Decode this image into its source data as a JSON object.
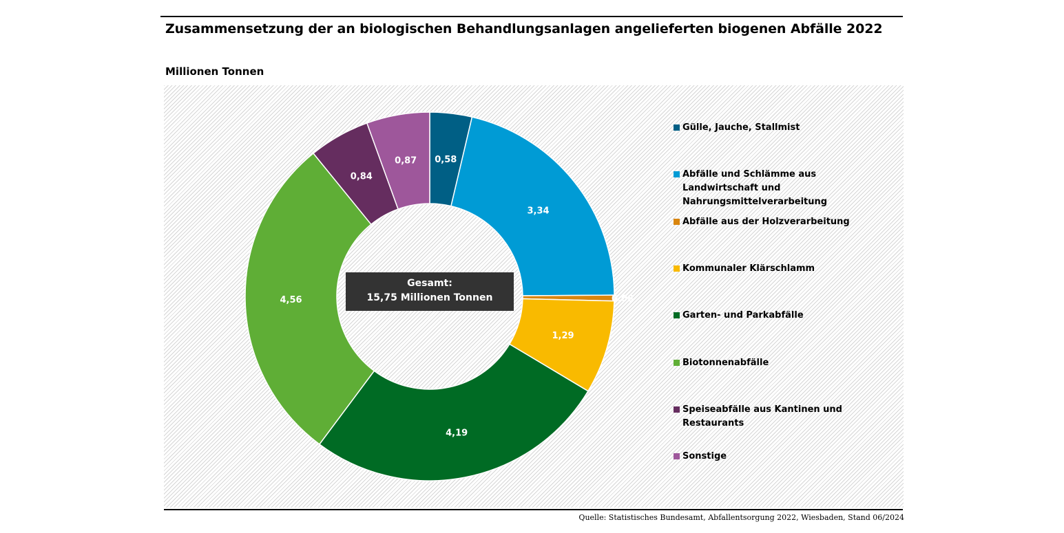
{
  "title": "Zusammensetzung der an biologischen Behandlungsanlagen angelieferten biogenen Abfälle 2022",
  "unit_label": "Millionen Tonnen",
  "source": "Quelle: Statistisches Bundesamt, Abfallentsorgung 2022, Wiesbaden, Stand 06/2024",
  "center": {
    "line1": "Gesamt:",
    "line2": "15,75 Millionen Tonnen"
  },
  "chart_data": {
    "type": "pie",
    "variant": "donut",
    "total": 15.75,
    "slices": [
      {
        "label": "Gülle, Jauche, Stallmist",
        "value": 0.58,
        "display": "0,58",
        "color": "#005f85"
      },
      {
        "label": "Abfälle und Schlämme aus Landwirtschaft und Nahrungsmittelverarbeitung",
        "value": 3.34,
        "display": "3,34",
        "color": "#009bd5"
      },
      {
        "label": "Abfälle aus der Holzverarbeitung",
        "value": 0.08,
        "display": "0,08",
        "color": "#d9850e"
      },
      {
        "label": "Kommunaler Klärschlamm",
        "value": 1.29,
        "display": "1,29",
        "color": "#f9ba00"
      },
      {
        "label": "Garten- und Parkabfälle",
        "value": 4.19,
        "display": "4,19",
        "color": "#006b24"
      },
      {
        "label": "Biotonnenabfälle",
        "value": 4.56,
        "display": "4,56",
        "color": "#5fae36"
      },
      {
        "label": "Speiseabfälle aus Kantinen und Restaurants",
        "value": 0.84,
        "display": "0,84",
        "color": "#652d5f"
      },
      {
        "label": "Sonstige",
        "value": 0.87,
        "display": "0,87",
        "color": "#9e579b"
      }
    ],
    "legend_position": "right"
  }
}
